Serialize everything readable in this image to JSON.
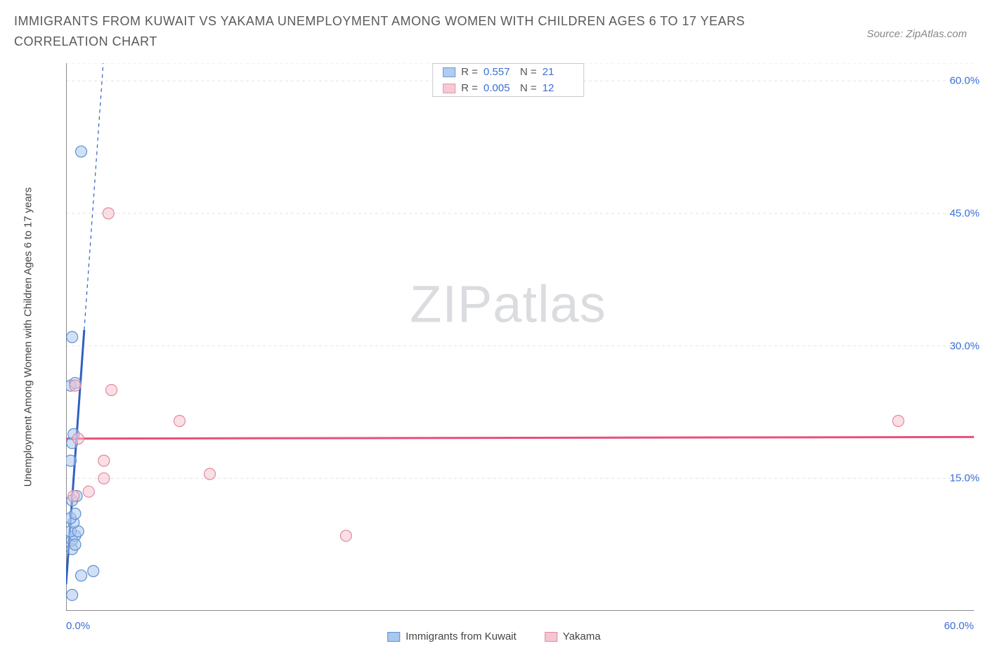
{
  "title": "IMMIGRANTS FROM KUWAIT VS YAKAMA UNEMPLOYMENT AMONG WOMEN WITH CHILDREN AGES 6 TO 17 YEARS CORRELATION CHART",
  "source_label": "Source: ZipAtlas.com",
  "watermark_a": "ZIP",
  "watermark_b": "atlas",
  "ylabel": "Unemployment Among Women with Children Ages 6 to 17 years",
  "chart": {
    "type": "scatter",
    "background_color": "#ffffff",
    "grid_color": "#e2e2e2",
    "axis_color": "#666666",
    "tick_label_color": "#3b6fd6",
    "xlim": [
      0,
      60
    ],
    "ylim": [
      0,
      62
    ],
    "xticks": [
      0.0,
      7.5,
      20.0,
      30.0,
      42.0,
      60.0
    ],
    "xtick_labels_shown": {
      "min": "0.0%",
      "max": "60.0%"
    },
    "yticks": [
      15.0,
      30.0,
      45.0,
      60.0
    ],
    "ytick_labels": [
      "15.0%",
      "30.0%",
      "45.0%",
      "60.0%"
    ],
    "series": [
      {
        "name": "Immigrants from Kuwait",
        "fill": "#a9c7ef",
        "stroke": "#5f8fd0",
        "fill_opacity": 0.55,
        "marker_radius": 8,
        "R": "0.557",
        "N": "21",
        "points": [
          [
            0.4,
            7.0
          ],
          [
            0.4,
            8.0
          ],
          [
            0.6,
            8.5
          ],
          [
            0.3,
            9.0
          ],
          [
            0.8,
            9.0
          ],
          [
            0.5,
            10.0
          ],
          [
            0.3,
            10.5
          ],
          [
            0.6,
            11.0
          ],
          [
            1.0,
            4.0
          ],
          [
            1.8,
            4.5
          ],
          [
            0.4,
            12.5
          ],
          [
            0.7,
            13.0
          ],
          [
            0.3,
            17.0
          ],
          [
            0.4,
            19.0
          ],
          [
            0.5,
            20.0
          ],
          [
            0.3,
            25.5
          ],
          [
            0.6,
            25.8
          ],
          [
            0.4,
            31.0
          ],
          [
            0.4,
            1.8
          ],
          [
            0.6,
            7.5
          ],
          [
            1.0,
            52.0
          ]
        ],
        "trend": {
          "slope": 24.0,
          "intercept": 3.0,
          "color": "#2f60c4",
          "solid_until_x": 1.2
        }
      },
      {
        "name": "Yakama",
        "fill": "#f6c5d0",
        "stroke": "#e08aa0",
        "fill_opacity": 0.55,
        "marker_radius": 8,
        "R": "0.005",
        "N": "12",
        "points": [
          [
            0.5,
            13.0
          ],
          [
            1.5,
            13.5
          ],
          [
            2.5,
            15.0
          ],
          [
            2.5,
            17.0
          ],
          [
            3.0,
            25.0
          ],
          [
            2.8,
            45.0
          ],
          [
            7.5,
            21.5
          ],
          [
            9.5,
            15.5
          ],
          [
            18.5,
            8.5
          ],
          [
            0.8,
            19.5
          ],
          [
            0.6,
            25.5
          ],
          [
            55.0,
            21.5
          ]
        ],
        "trend": {
          "slope": 0.003,
          "intercept": 19.5,
          "color": "#e94f7a",
          "solid_until_x": 60
        }
      }
    ],
    "legend_bottom": [
      "Immigrants from Kuwait",
      "Yakama"
    ]
  }
}
